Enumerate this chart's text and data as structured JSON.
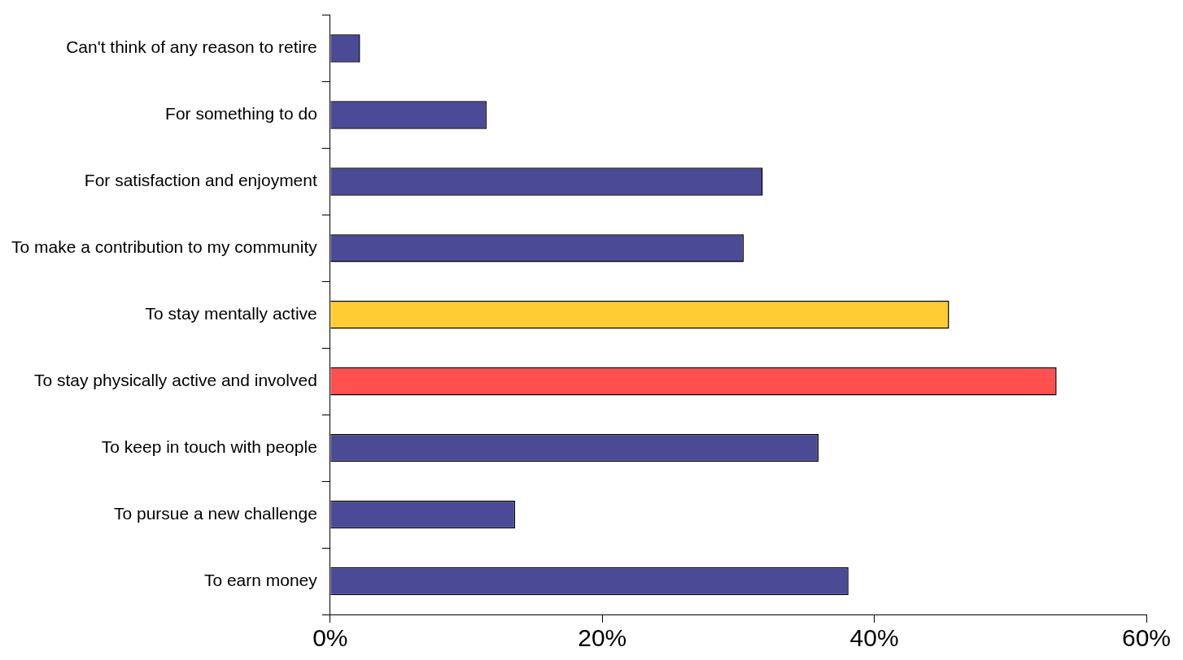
{
  "chart_data": {
    "type": "bar",
    "orientation": "horizontal",
    "categories": [
      "Can't think of any reason to retire",
      "For something to do",
      "For satisfaction and enjoyment",
      "To make a contribution to my community",
      "To stay mentally active",
      "To stay physically active and involved",
      "To keep in touch with people",
      "To pursue a new challenge",
      "To earn money"
    ],
    "values": [
      2.2,
      11.5,
      31.8,
      30.4,
      45.5,
      53.4,
      35.9,
      13.6,
      38.1
    ],
    "colors": [
      "#4a4a96",
      "#4a4a96",
      "#4a4a96",
      "#4a4a96",
      "#ffcc33",
      "#ff5050",
      "#4a4a96",
      "#4a4a96",
      "#4a4a96"
    ],
    "xlim": [
      0,
      60
    ],
    "xticks": [
      {
        "value": 0,
        "label": "0%"
      },
      {
        "value": 20,
        "label": "20%"
      },
      {
        "value": 40,
        "label": "40%"
      },
      {
        "value": 60,
        "label": "60%"
      }
    ],
    "grid": false,
    "legend": false
  }
}
